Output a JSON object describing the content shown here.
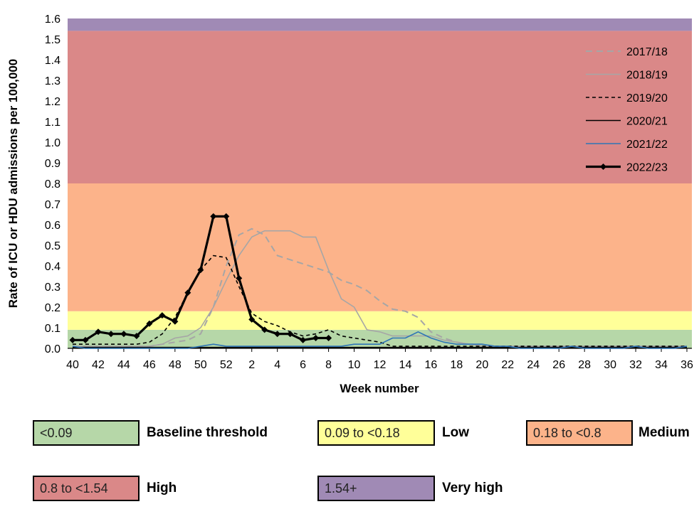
{
  "chart_data": {
    "type": "line",
    "xlabel": "Week number",
    "ylabel": "Rate of ICU or HDU admissions per 100,000",
    "ylim": [
      0,
      1.6
    ],
    "yticks": [
      "0.0",
      "0.1",
      "0.2",
      "0.3",
      "0.4",
      "0.5",
      "0.6",
      "0.7",
      "0.8",
      "0.9",
      "1.0",
      "1.1",
      "1.2",
      "1.3",
      "1.4",
      "1.5",
      "1.6"
    ],
    "weeks": [
      40,
      41,
      42,
      43,
      44,
      45,
      46,
      47,
      48,
      49,
      50,
      51,
      52,
      1,
      2,
      3,
      4,
      5,
      6,
      7,
      8,
      9,
      10,
      11,
      12,
      13,
      14,
      15,
      16,
      17,
      18,
      19,
      20,
      21,
      22,
      23,
      24,
      25,
      26,
      27,
      28,
      29,
      30,
      31,
      32,
      33,
      34,
      35,
      36
    ],
    "x_tick_labels": [
      "40",
      "42",
      "44",
      "46",
      "48",
      "50",
      "52",
      "2",
      "4",
      "6",
      "8",
      "10",
      "12",
      "14",
      "16",
      "18",
      "20",
      "22",
      "24",
      "26",
      "28",
      "30",
      "32",
      "34",
      "36"
    ],
    "grid": false,
    "legend_position": "top-right",
    "thresholds": [
      {
        "label": "<0.09",
        "name": "Baseline threshold",
        "from": 0,
        "to": 0.09,
        "color": "#b6d7a8"
      },
      {
        "label": "0.09 to <0.18",
        "name": "Low",
        "from": 0.09,
        "to": 0.18,
        "color": "#ffff99"
      },
      {
        "label": "0.18 to <0.8",
        "name": "Medium",
        "from": 0.18,
        "to": 0.8,
        "color": "#fcb38a"
      },
      {
        "label": "0.8 to <1.54",
        "name": "High",
        "from": 0.8,
        "to": 1.54,
        "color": "#da8888"
      },
      {
        "label": "1.54+",
        "name": "Very high",
        "from": 1.54,
        "to": 1.6,
        "color": "#a08ab5"
      }
    ],
    "series": [
      {
        "name": "2017/18",
        "color": "#a6a6a6",
        "dash": "9,6",
        "width": 2,
        "markers": false,
        "values": [
          0.01,
          0.01,
          0.01,
          0.01,
          0.01,
          0.01,
          0.01,
          0.02,
          0.03,
          0.04,
          0.07,
          0.2,
          0.4,
          0.55,
          0.58,
          0.55,
          0.45,
          0.43,
          0.41,
          0.39,
          0.37,
          0.33,
          0.31,
          0.28,
          0.23,
          0.19,
          0.18,
          0.15,
          0.08,
          0.05,
          0.03,
          0.02,
          0.02,
          0.01,
          0.01,
          0.01,
          0.01,
          0.01,
          0.01,
          0.01,
          0.01,
          0.01,
          0.01,
          0.01,
          0.01,
          0.01,
          0.01,
          0.01,
          0.01
        ]
      },
      {
        "name": "2018/19",
        "color": "#a6a6a6",
        "dash": "",
        "width": 1.6,
        "markers": false,
        "values": [
          0.01,
          0.01,
          0.01,
          0.01,
          0.01,
          0.01,
          0.01,
          0.02,
          0.05,
          0.06,
          0.1,
          0.2,
          0.33,
          0.45,
          0.54,
          0.57,
          0.57,
          0.57,
          0.54,
          0.54,
          0.38,
          0.24,
          0.2,
          0.09,
          0.08,
          0.06,
          0.06,
          0.06,
          0.06,
          0.04,
          0.03,
          0.02,
          0.01,
          0.01,
          0.01,
          0.01,
          0.01,
          0.01,
          0.01,
          0.01,
          0.01,
          0.01,
          0.01,
          0.01,
          0.01,
          0.01,
          0.01,
          0.01,
          0.01
        ]
      },
      {
        "name": "2019/20",
        "color": "#000000",
        "dash": "5,4",
        "width": 1.6,
        "markers": false,
        "values": [
          0.02,
          0.02,
          0.02,
          0.02,
          0.02,
          0.02,
          0.03,
          0.07,
          0.15,
          0.27,
          0.38,
          0.45,
          0.44,
          0.3,
          0.17,
          0.13,
          0.11,
          0.08,
          0.06,
          0.07,
          0.09,
          0.06,
          0.05,
          0.04,
          0.03,
          0.01,
          0.01,
          0.01,
          0.01,
          0.01,
          0.01,
          0.01,
          0.01,
          0.01,
          0.01,
          0.01,
          0.01,
          0.01,
          0.01,
          0.01,
          0.01,
          0.01,
          0.01,
          0.01,
          0.01,
          0.01,
          0.01,
          0.01,
          0.01
        ]
      },
      {
        "name": "2020/21",
        "color": "#000000",
        "dash": "",
        "width": 1.5,
        "markers": false,
        "values": [
          0.005,
          0.005,
          0.005,
          0.005,
          0.005,
          0.005,
          0.005,
          0.005,
          0.005,
          0.005,
          0.005,
          0.005,
          0.005,
          0.005,
          0.005,
          0.005,
          0.005,
          0.005,
          0.005,
          0.005,
          0.005,
          0.005,
          0.005,
          0.005,
          0.005,
          0.005,
          0.005,
          0.005,
          0.005,
          0.005,
          0.005,
          0.005,
          0.005,
          0.005,
          0.005,
          0.005,
          0.005,
          0.005,
          0.005,
          0.005,
          0.005,
          0.005,
          0.005,
          0.005,
          0.005,
          0.005,
          0.005,
          0.005,
          0.005
        ]
      },
      {
        "name": "2021/22",
        "color": "#2e75b6",
        "dash": "",
        "width": 1.6,
        "markers": false,
        "values": [
          0.01,
          0.0,
          0.0,
          0.0,
          0.0,
          0.0,
          0.0,
          0.0,
          0.0,
          0.0,
          0.01,
          0.02,
          0.01,
          0.01,
          0.01,
          0.01,
          0.01,
          0.01,
          0.01,
          0.01,
          0.01,
          0.01,
          0.02,
          0.02,
          0.02,
          0.05,
          0.05,
          0.08,
          0.05,
          0.03,
          0.02,
          0.02,
          0.02,
          0.01,
          0.01,
          0.0,
          0.0,
          0.0,
          0.0,
          0.01,
          0.0,
          0.0,
          0.0,
          0.0,
          0.01,
          0.0,
          0.0,
          0.0,
          0.01
        ]
      },
      {
        "name": "2022/23",
        "color": "#000000",
        "dash": "",
        "width": 3.2,
        "markers": true,
        "values": [
          0.04,
          0.04,
          0.08,
          0.07,
          0.07,
          0.06,
          0.12,
          0.16,
          0.13,
          0.27,
          0.38,
          0.64,
          0.64,
          0.34,
          0.14,
          0.09,
          0.07,
          0.07,
          0.04,
          0.05,
          0.05
        ]
      }
    ]
  }
}
